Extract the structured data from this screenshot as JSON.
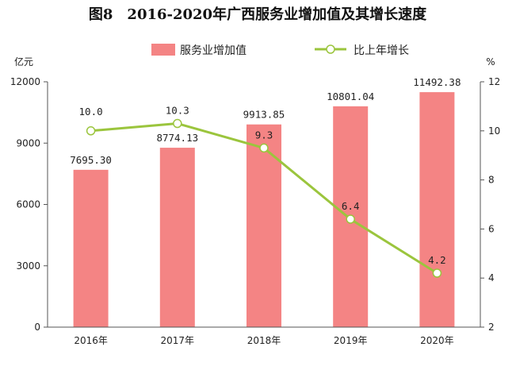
{
  "chart_data": {
    "type": "bar",
    "title": "图8　2016-2020年广西服务业增加值及其增长速度",
    "left_axis_unit": "亿元",
    "right_axis_unit": "%",
    "categories": [
      "2016年",
      "2017年",
      "2018年",
      "2019年",
      "2020年"
    ],
    "series": [
      {
        "name": "服务业增加值",
        "type": "bar",
        "axis": "left",
        "values": [
          7695.3,
          8774.13,
          9913.85,
          10801.04,
          11492.38
        ],
        "labels": [
          "7695.30",
          "8774.13",
          "9913.85",
          "10801.04",
          "11492.38"
        ],
        "color": "#F48484"
      },
      {
        "name": "比上年增长",
        "type": "line",
        "axis": "right",
        "values": [
          10.0,
          10.3,
          9.3,
          6.4,
          4.2
        ],
        "labels": [
          "10.0",
          "10.3",
          "9.3",
          "6.4",
          "4.2"
        ],
        "color": "#9BC53D"
      }
    ],
    "y_left": {
      "min": 0,
      "max": 12000,
      "ticks": [
        0,
        3000,
        6000,
        9000,
        12000
      ],
      "tick_labels": [
        "0",
        "3000",
        "6000",
        "9000",
        "12000"
      ]
    },
    "y_right": {
      "min": 2,
      "max": 12,
      "ticks": [
        2,
        4,
        6,
        8,
        10,
        12
      ],
      "tick_labels": [
        "2",
        "4",
        "6",
        "8",
        "10",
        "12"
      ]
    },
    "legend_position": "top-center",
    "grid": false
  }
}
